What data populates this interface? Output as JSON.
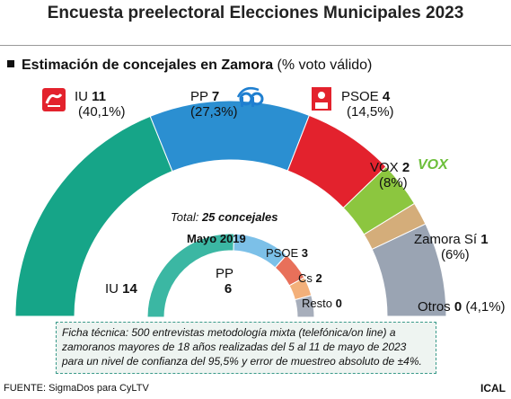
{
  "title": "Encuesta preelectoral Elecciones Municipales 2023",
  "subtitle": {
    "bold": "Estimación de concejales en Zamora",
    "rest": " (% voto válido)"
  },
  "chart_data": [
    {
      "type": "pie",
      "variant": "half-donut",
      "title": "Estimación de concejales en Zamora",
      "total_seats": 25,
      "series": [
        {
          "name": "IU",
          "seats": 11,
          "pct": "(40,1%)",
          "color": "#16a588"
        },
        {
          "name": "PP",
          "seats": 7,
          "pct": "(27,3%)",
          "color": "#2b8fd1"
        },
        {
          "name": "PSOE",
          "seats": 4,
          "pct": "(14,5%)",
          "color": "#e3222d"
        },
        {
          "name": "VOX",
          "seats": 2,
          "pct": "(8%)",
          "color": "#8cc63f"
        },
        {
          "name": "Zamora Sí",
          "seats": 1,
          "pct": "(6%)",
          "color": "#d4ad7a"
        },
        {
          "name": "Otros",
          "seats": 0,
          "pct": "(4,1%)",
          "color": "#9aa4b3",
          "weight": 4.1
        }
      ]
    },
    {
      "type": "pie",
      "variant": "half-donut",
      "title": "Mayo 2019",
      "total_label": "Total: ",
      "total_value": "25 concejales",
      "series": [
        {
          "name": "IU",
          "seats": 14,
          "color": "#3bb7a3"
        },
        {
          "name": "PP",
          "seats": 6,
          "color": "#7cc0e8"
        },
        {
          "name": "PSOE",
          "seats": 3,
          "color": "#e8705a"
        },
        {
          "name": "Cs",
          "seats": 2,
          "color": "#f3b07a"
        },
        {
          "name": "Resto",
          "seats": 0,
          "color": "#a7aebb",
          "weight": 2.3
        }
      ]
    }
  ],
  "labels": {
    "iu": {
      "name": "IU ",
      "seats": "11",
      "pct": "(40,1%)"
    },
    "pp": {
      "name": "PP ",
      "seats": "7",
      "pct": "(27,3%)"
    },
    "psoe": {
      "name": "PSOE ",
      "seats": "4",
      "pct": "(14,5%)"
    },
    "vox": {
      "name": "VOX ",
      "seats": "2",
      "pct": "(8%)"
    },
    "zamora": {
      "name": "Zamora Sí ",
      "seats": "1",
      "pct": "(6%)"
    },
    "otros": {
      "name": "Otros ",
      "seats": "0",
      "pct": " (4,1%)"
    }
  },
  "labels2019": {
    "iu": {
      "name": "IU ",
      "seats": "14"
    },
    "pp": {
      "name": "PP",
      "seats": "6"
    },
    "psoe": {
      "name": "PSOE ",
      "seats": "3"
    },
    "cs": {
      "name": "Cs ",
      "seats": "2"
    },
    "resto": {
      "name": "Resto ",
      "seats": "0"
    }
  },
  "logos": {
    "vox_text": "VOX",
    "iu_text": "IU",
    "psoe_text": "PSOE"
  },
  "colors": {
    "iu": "#e3222d",
    "pp": "#1f7fd0",
    "psoe": "#e3222d",
    "vox": "#6dbf3b",
    "ring": "#3bb7a3"
  },
  "technical_note": "Ficha técnica: 500 entrevistas metodología mixta (telefónica/on line) a zamoranos mayores de 18 años realizadas del 5 al 11 de mayo de 2023 para un nivel de confianza del 95,5% y error de muestreo absoluto de ±4%.",
  "footer": "FUENTE: SigmaDos para CyLTV",
  "brand": "ICAL"
}
